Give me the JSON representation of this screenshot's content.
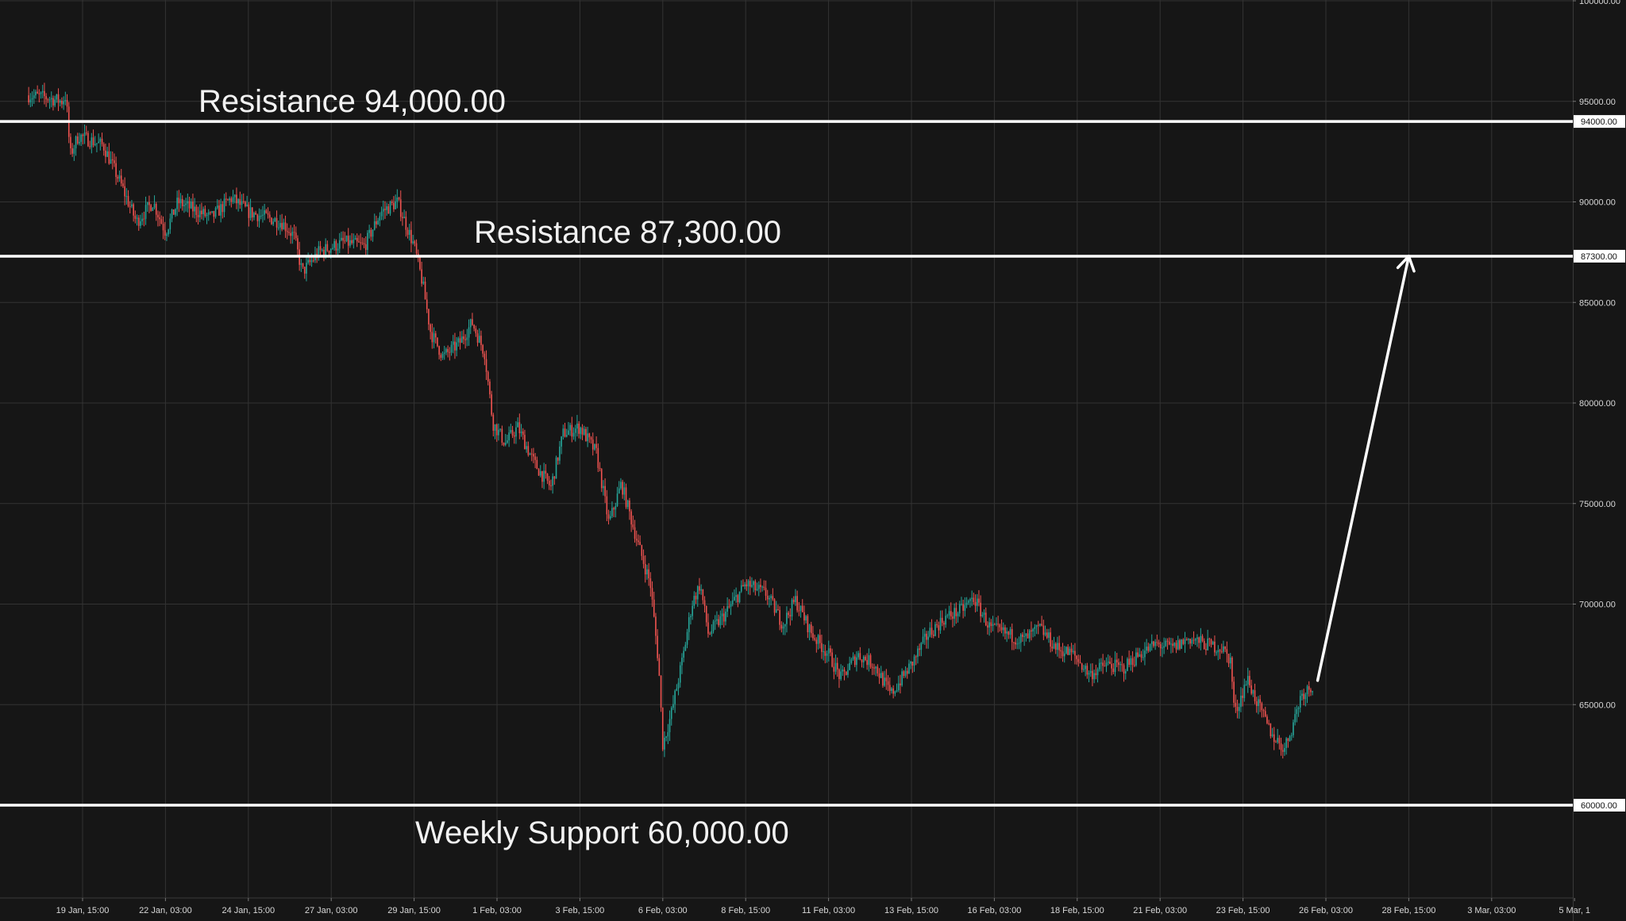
{
  "chart_data": {
    "type": "candlestick",
    "title": "",
    "xlabel": "",
    "ylabel": "",
    "ylim": [
      55000,
      100000
    ],
    "grid": true,
    "y_ticks": [
      "100000.00",
      "95000.00",
      "90000.00",
      "85000.00",
      "80000.00",
      "75000.00",
      "70000.00",
      "65000.00"
    ],
    "x_ticks": [
      "19 Jan, 15:00",
      "22 Jan, 03:00",
      "24 Jan, 15:00",
      "27 Jan, 03:00",
      "29 Jan, 15:00",
      "1 Feb, 03:00",
      "3 Feb, 15:00",
      "6 Feb, 03:00",
      "8 Feb, 15:00",
      "11 Feb, 03:00",
      "13 Feb, 15:00",
      "16 Feb, 03:00",
      "18 Feb, 15:00",
      "21 Feb, 03:00",
      "23 Feb, 15:00",
      "26 Feb, 03:00",
      "28 Feb, 15:00",
      "3 Mar, 03:00",
      "5 Mar, 1"
    ],
    "levels": [
      {
        "label": "Resistance 94,000.00",
        "value": 94000,
        "badge": "94000.00"
      },
      {
        "label": "Resistance 87,300.00",
        "value": 87300,
        "badge": "87300.00"
      },
      {
        "label": "Weekly Support 60,000.00",
        "value": 60000,
        "badge": "60000.00"
      }
    ],
    "price_path": [
      {
        "x": "18 Jan, 00:00",
        "y": 95300
      },
      {
        "x": "18 Jan, 12:00",
        "y": 95200
      },
      {
        "x": "19 Jan, 00:00",
        "y": 95000
      },
      {
        "x": "19 Jan, 03:00",
        "y": 95300
      },
      {
        "x": "19 Jan, 06:00",
        "y": 92300
      },
      {
        "x": "19 Jan, 12:00",
        "y": 93300
      },
      {
        "x": "20 Jan, 06:00",
        "y": 92800
      },
      {
        "x": "20 Jan, 18:00",
        "y": 91000
      },
      {
        "x": "21 Jan, 06:00",
        "y": 89000
      },
      {
        "x": "21 Jan, 18:00",
        "y": 90000
      },
      {
        "x": "22 Jan, 03:00",
        "y": 88500
      },
      {
        "x": "22 Jan, 12:00",
        "y": 90000
      },
      {
        "x": "23 Jan, 12:00",
        "y": 89200
      },
      {
        "x": "24 Jan, 03:00",
        "y": 90200
      },
      {
        "x": "24 Jan, 15:00",
        "y": 89500
      },
      {
        "x": "25 Jan, 15:00",
        "y": 89000
      },
      {
        "x": "26 Jan, 00:00",
        "y": 88300
      },
      {
        "x": "26 Jan, 06:00",
        "y": 86500
      },
      {
        "x": "26 Jan, 18:00",
        "y": 87500
      },
      {
        "x": "27 Jan, 12:00",
        "y": 88000
      },
      {
        "x": "28 Jan, 03:00",
        "y": 87800
      },
      {
        "x": "28 Jan, 15:00",
        "y": 89500
      },
      {
        "x": "29 Jan, 03:00",
        "y": 90000
      },
      {
        "x": "29 Jan, 15:00",
        "y": 87800
      },
      {
        "x": "29 Jan, 21:00",
        "y": 86000
      },
      {
        "x": "30 Jan, 03:00",
        "y": 83500
      },
      {
        "x": "30 Jan, 12:00",
        "y": 82300
      },
      {
        "x": "31 Jan, 00:00",
        "y": 83000
      },
      {
        "x": "31 Jan, 09:00",
        "y": 84000
      },
      {
        "x": "31 Jan, 18:00",
        "y": 82500
      },
      {
        "x": "1 Feb, 00:00",
        "y": 79000
      },
      {
        "x": "1 Feb, 09:00",
        "y": 78000
      },
      {
        "x": "1 Feb, 18:00",
        "y": 78800
      },
      {
        "x": "2 Feb, 06:00",
        "y": 77000
      },
      {
        "x": "2 Feb, 18:00",
        "y": 75800
      },
      {
        "x": "3 Feb, 03:00",
        "y": 78500
      },
      {
        "x": "3 Feb, 15:00",
        "y": 78800
      },
      {
        "x": "4 Feb, 03:00",
        "y": 77500
      },
      {
        "x": "4 Feb, 12:00",
        "y": 74000
      },
      {
        "x": "4 Feb, 21:00",
        "y": 76000
      },
      {
        "x": "5 Feb, 09:00",
        "y": 73000
      },
      {
        "x": "5 Feb, 18:00",
        "y": 71000
      },
      {
        "x": "6 Feb, 00:00",
        "y": 67000
      },
      {
        "x": "6 Feb, 03:00",
        "y": 63000
      },
      {
        "x": "6 Feb, 09:00",
        "y": 64500
      },
      {
        "x": "6 Feb, 18:00",
        "y": 67500
      },
      {
        "x": "7 Feb, 00:00",
        "y": 70000
      },
      {
        "x": "7 Feb, 06:00",
        "y": 71000
      },
      {
        "x": "7 Feb, 12:00",
        "y": 68500
      },
      {
        "x": "8 Feb, 00:00",
        "y": 69500
      },
      {
        "x": "8 Feb, 15:00",
        "y": 71000
      },
      {
        "x": "9 Feb, 06:00",
        "y": 70500
      },
      {
        "x": "9 Feb, 18:00",
        "y": 69000
      },
      {
        "x": "10 Feb, 03:00",
        "y": 70200
      },
      {
        "x": "10 Feb, 15:00",
        "y": 68500
      },
      {
        "x": "11 Feb, 03:00",
        "y": 67500
      },
      {
        "x": "11 Feb, 12:00",
        "y": 66300
      },
      {
        "x": "12 Feb, 00:00",
        "y": 67500
      },
      {
        "x": "12 Feb, 12:00",
        "y": 67000
      },
      {
        "x": "13 Feb, 00:00",
        "y": 65500
      },
      {
        "x": "13 Feb, 15:00",
        "y": 67000
      },
      {
        "x": "14 Feb, 03:00",
        "y": 68500
      },
      {
        "x": "14 Feb, 15:00",
        "y": 69300
      },
      {
        "x": "15 Feb, 03:00",
        "y": 69700
      },
      {
        "x": "15 Feb, 12:00",
        "y": 70300
      },
      {
        "x": "16 Feb, 00:00",
        "y": 68800
      },
      {
        "x": "16 Feb, 12:00",
        "y": 68500
      },
      {
        "x": "17 Feb, 00:00",
        "y": 68200
      },
      {
        "x": "17 Feb, 12:00",
        "y": 68800
      },
      {
        "x": "18 Feb, 00:00",
        "y": 67800
      },
      {
        "x": "18 Feb, 12:00",
        "y": 67500
      },
      {
        "x": "19 Feb, 00:00",
        "y": 66500
      },
      {
        "x": "19 Feb, 12:00",
        "y": 67000
      },
      {
        "x": "20 Feb, 00:00",
        "y": 66800
      },
      {
        "x": "20 Feb, 12:00",
        "y": 67500
      },
      {
        "x": "21 Feb, 00:00",
        "y": 68000
      },
      {
        "x": "21 Feb, 12:00",
        "y": 67800
      },
      {
        "x": "22 Feb, 00:00",
        "y": 68300
      },
      {
        "x": "22 Feb, 12:00",
        "y": 68000
      },
      {
        "x": "23 Feb, 00:00",
        "y": 67800
      },
      {
        "x": "23 Feb, 06:00",
        "y": 67200
      },
      {
        "x": "23 Feb, 09:00",
        "y": 64500
      },
      {
        "x": "23 Feb, 18:00",
        "y": 66300
      },
      {
        "x": "24 Feb, 03:00",
        "y": 64800
      },
      {
        "x": "24 Feb, 12:00",
        "y": 63500
      },
      {
        "x": "24 Feb, 21:00",
        "y": 62800
      },
      {
        "x": "25 Feb, 03:00",
        "y": 64000
      },
      {
        "x": "25 Feb, 09:00",
        "y": 65500
      },
      {
        "x": "25 Feb, 18:00",
        "y": 66000
      }
    ],
    "projection": {
      "from": {
        "x": "25 Feb, 21:00",
        "y": 66200
      },
      "to": {
        "x": "28 Feb, 15:00",
        "y": 87300
      }
    },
    "colors": {
      "background": "#161616",
      "grid": "#333333",
      "up": "#26a69a",
      "down": "#ef5350",
      "level_line": "#ffffff",
      "text": "#f2f2f2"
    }
  }
}
